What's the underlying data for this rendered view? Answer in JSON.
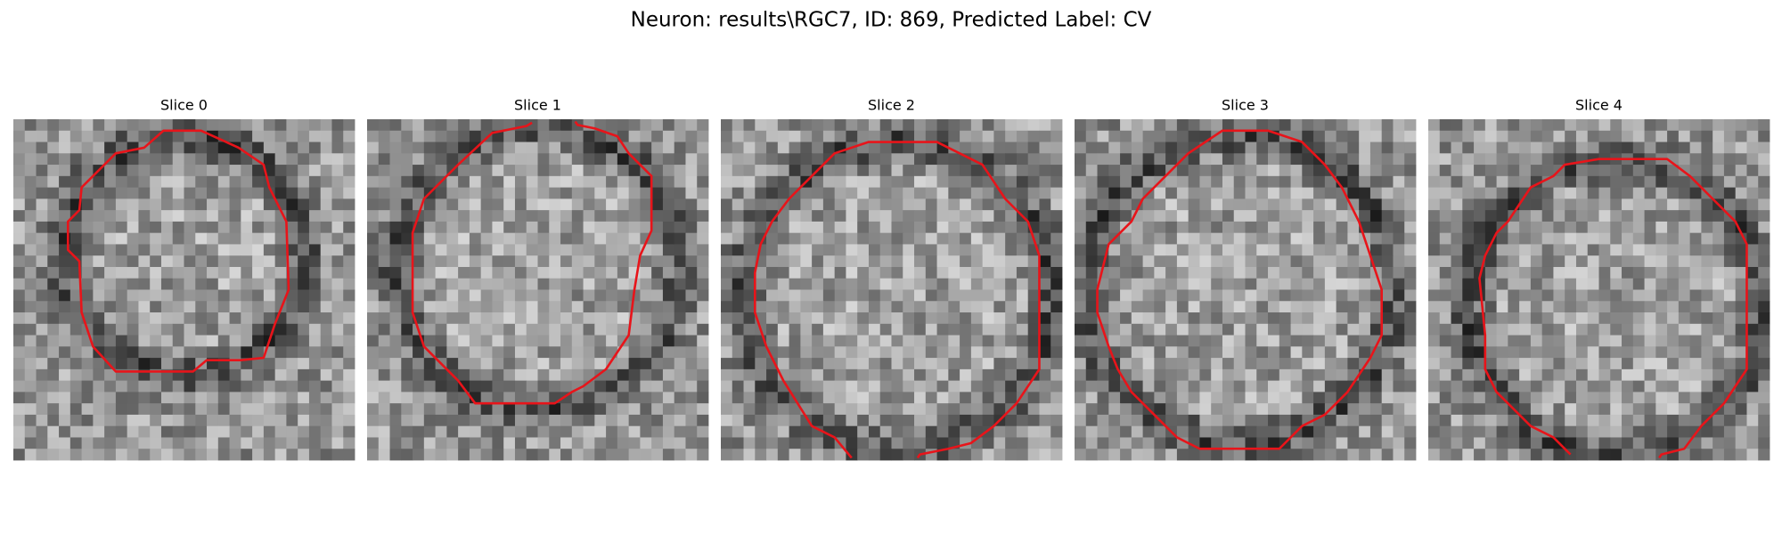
{
  "header": {
    "title": "Neuron: results\\RGC7, ID: 869, Predicted Label: CV"
  },
  "panels": [
    {
      "title": "Slice 0"
    },
    {
      "title": "Slice 1"
    },
    {
      "title": "Slice 2"
    },
    {
      "title": "Slice 3"
    },
    {
      "title": "Slice 4"
    }
  ]
}
